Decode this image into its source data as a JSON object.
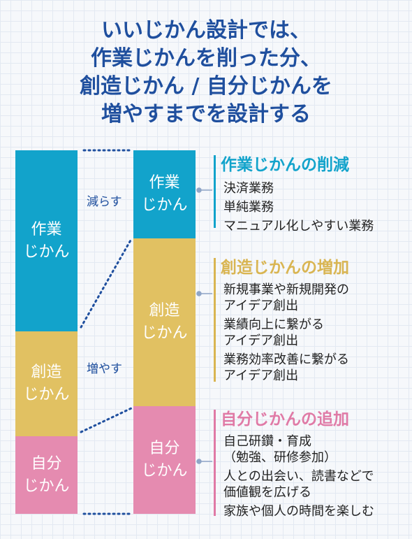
{
  "title": {
    "lines": [
      "いいじかん設計では、",
      "作業じかんを削った分、",
      "創造じかん / 自分じかんを",
      "増やすまでを設計する"
    ]
  },
  "before": {
    "work": "作業\nじかん",
    "creative": "創造\nじかん",
    "self": "自分\nじかん"
  },
  "after": {
    "work": "作業\nじかん",
    "creative": "創造\nじかん",
    "self": "自分\nじかん"
  },
  "notes": {
    "reduce": "減らす",
    "increase": "増やす"
  },
  "sections": {
    "work": {
      "heading": "作業じかんの削減",
      "color": "#12a3cb",
      "items": [
        "決済業務",
        "単純業務",
        "マニュアル化しやすい業務"
      ]
    },
    "creative": {
      "heading": "創造じかんの増加",
      "color": "#d9b552",
      "items": [
        "新規事業や新規開発の\nアイデア創出",
        "業績向上に繋がる\nアイデア創出",
        "業務効率改善に繋がる\nアイデア創出"
      ]
    },
    "self": {
      "heading": "自分じかんの追加",
      "color": "#e07aa6",
      "items": [
        "自己研鑽・育成\n（勉強、研修参加）",
        "人との出会い、読書などで\n価値観を広げる",
        "家族や個人の時間を楽しむ"
      ]
    }
  },
  "colors": {
    "blue": "#12a3cb",
    "gold": "#e1c162",
    "pink": "#e58bb0",
    "title": "#1f4f9e"
  }
}
